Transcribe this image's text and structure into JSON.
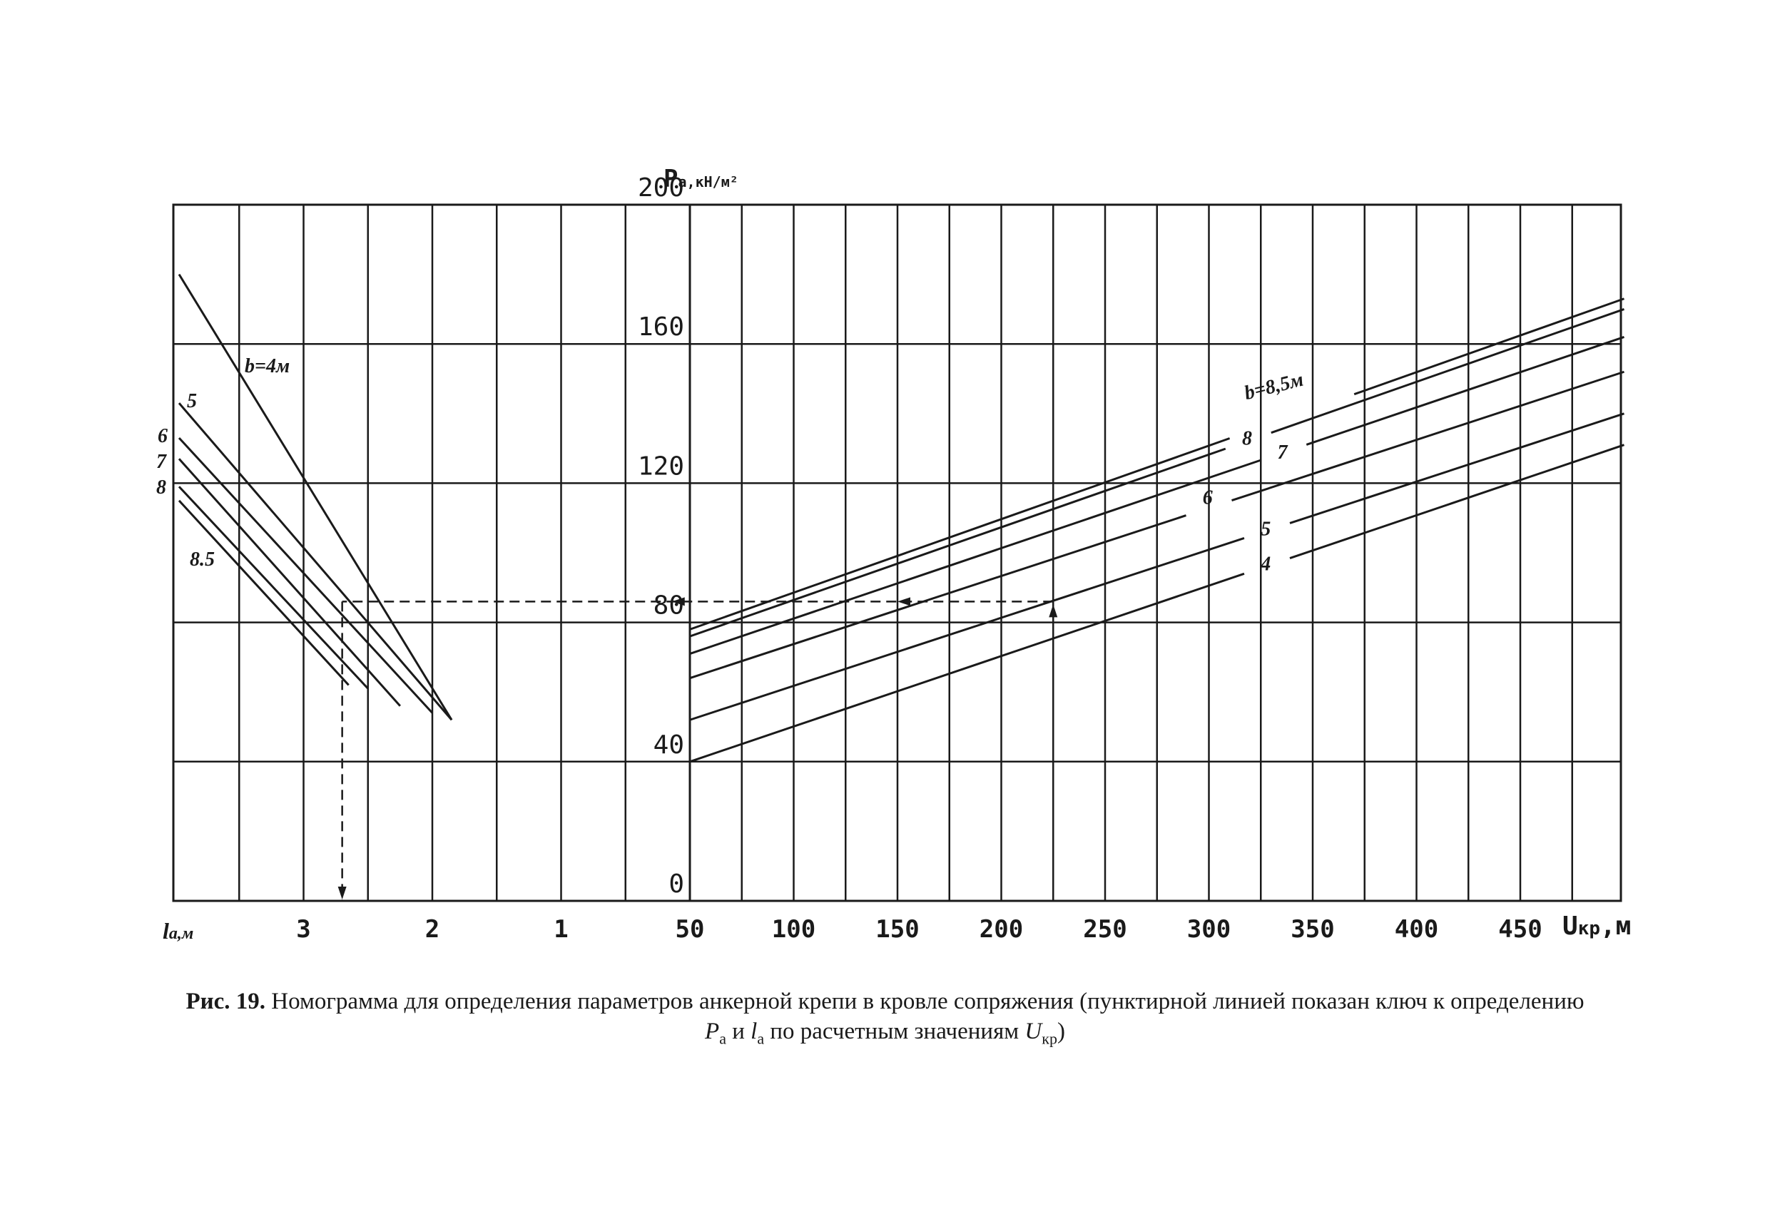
{
  "chart_data": {
    "type": "line",
    "y_axis": {
      "label_main": "P",
      "label_sub": "а",
      "label_unit": ",кН/м²",
      "ticks": [
        "0",
        "40",
        "80",
        "120",
        "160",
        "200"
      ],
      "tick_values": [
        0,
        40,
        80,
        120,
        160,
        200
      ],
      "range": [
        0,
        200
      ]
    },
    "right_panel": {
      "x_axis": {
        "label_main": "U",
        "label_sub": "кр",
        "label_unit": ",м",
        "ticks": [
          "50",
          "100",
          "150",
          "200",
          "250",
          "300",
          "350",
          "400",
          "450"
        ],
        "tick_values": [
          50,
          100,
          150,
          200,
          250,
          300,
          350,
          400,
          450
        ],
        "range": [
          50,
          500
        ]
      },
      "series": [
        {
          "name": "b=8,5м",
          "points": [
            [
              50,
              78
            ],
            [
              500,
              173
            ]
          ]
        },
        {
          "name": "8",
          "points": [
            [
              50,
              76
            ],
            [
              500,
              170
            ]
          ]
        },
        {
          "name": "7",
          "points": [
            [
              50,
              71
            ],
            [
              500,
              162
            ]
          ]
        },
        {
          "name": "6",
          "points": [
            [
              50,
              64
            ],
            [
              500,
              152
            ]
          ]
        },
        {
          "name": "5",
          "points": [
            [
              50,
              52
            ],
            [
              500,
              140
            ]
          ]
        },
        {
          "name": "4",
          "points": [
            [
              50,
              40
            ],
            [
              500,
              131
            ]
          ]
        }
      ]
    },
    "left_panel": {
      "x_axis": {
        "label_main": "l",
        "label_sub": "а",
        "label_unit": ",м",
        "ticks": [
          "3",
          "2",
          "1"
        ],
        "tick_values": [
          3,
          2,
          1
        ],
        "range": [
          4,
          0
        ]
      },
      "series": [
        {
          "name": "b=4м",
          "points": [
            [
              4,
              180
            ],
            [
              1.85,
              52
            ]
          ]
        },
        {
          "name": "5",
          "points": [
            [
              4,
              143
            ],
            [
              1.85,
              52
            ]
          ]
        },
        {
          "name": "6",
          "points": [
            [
              4,
              133
            ],
            [
              2.0,
              54
            ]
          ]
        },
        {
          "name": "7",
          "points": [
            [
              4,
              127
            ],
            [
              2.25,
              56
            ]
          ]
        },
        {
          "name": "8",
          "points": [
            [
              4,
              119
            ],
            [
              2.5,
              61
            ]
          ]
        },
        {
          "name": "8.5",
          "points": [
            [
              4,
              115
            ],
            [
              2.65,
              62
            ]
          ]
        }
      ]
    },
    "key_line": {
      "u_value": 225,
      "p_value": 86,
      "l_value": 2.7
    },
    "grid": true
  },
  "caption": {
    "figure": "Рис. 19.",
    "text_line1": "Номограмма для определения параметров анкерной крепи в кровле сопряжения (пунктирной линией показан ключ к определению",
    "p_main": "P",
    "p_sub": "а",
    "and": " и ",
    "l_main": "l",
    "l_sub": "а",
    "mid": " по расчетным значениям ",
    "u_main": "U",
    "u_sub": "кр",
    "end": ")"
  }
}
